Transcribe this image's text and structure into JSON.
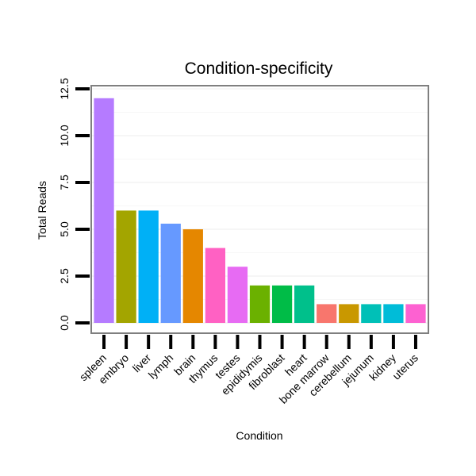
{
  "chart_data": {
    "type": "bar",
    "title": "Condition-specificity",
    "xlabel": "Condition",
    "ylabel": "Total Reads",
    "ylim": [
      0,
      12.5
    ],
    "yticks": [
      0,
      2.5,
      5,
      7.5,
      10,
      12.5
    ],
    "ytick_labels": [
      "0.0",
      "2.5",
      "5.0",
      "7.5",
      "10.0",
      "12.5"
    ],
    "grid": true,
    "categories": [
      "spleen",
      "embryo",
      "liver",
      "lymph",
      "brain",
      "thymus",
      "testes",
      "epididymis",
      "fibroblast",
      "heart",
      "bone marrow",
      "cerebellum",
      "jejunum",
      "kidney",
      "uterus"
    ],
    "values": [
      12,
      6,
      6,
      5.3,
      5,
      4,
      3,
      2,
      2,
      2,
      1,
      1,
      1,
      1,
      1
    ],
    "colors": [
      "#b57bff",
      "#a3a500",
      "#00b0f6",
      "#6699ff",
      "#e58700",
      "#ff61c3",
      "#e76bf3",
      "#6bb100",
      "#00bc47",
      "#00c08b",
      "#f8766d",
      "#c99800",
      "#00c0b7",
      "#00bcd8",
      "#fd61d1"
    ]
  }
}
